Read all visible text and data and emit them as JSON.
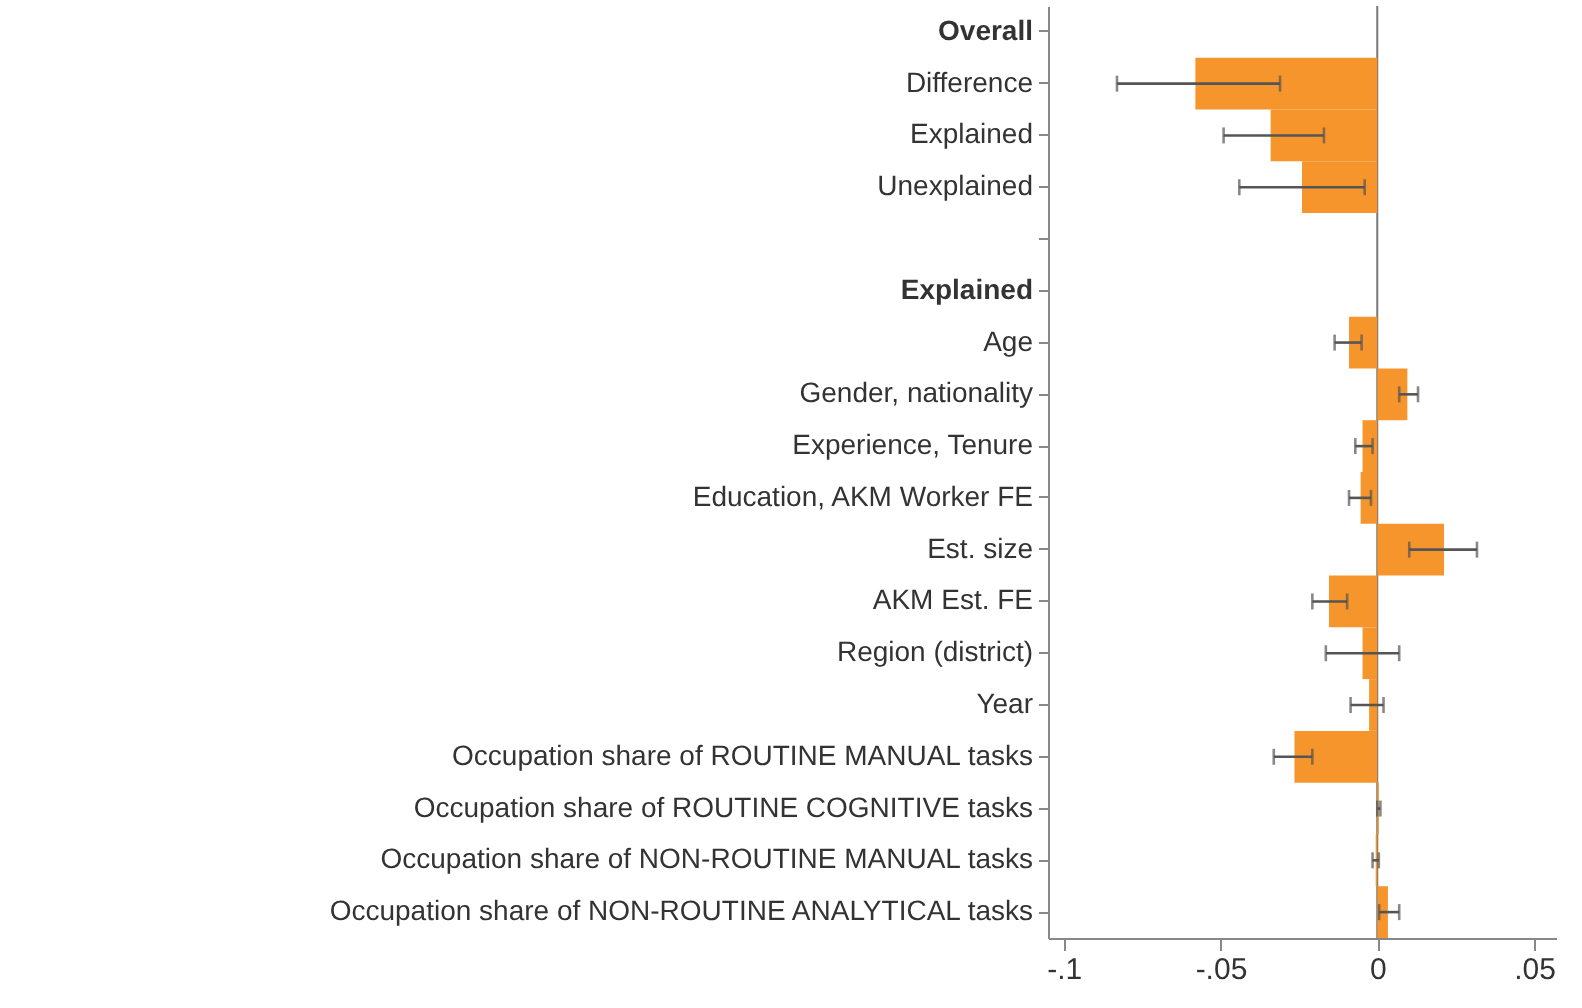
{
  "chart_data": {
    "type": "bar",
    "orientation": "horizontal",
    "categories": [
      "Overall",
      "Difference",
      "Explained",
      "Unexplained",
      null,
      "Explained",
      "Age",
      "Gender, nationality",
      "Experience, Tenure",
      "Education, AKM Worker FE",
      "Est. size",
      "AKM Est. FE",
      "Region (district)",
      "Year",
      "Occupation share of ROUTINE MANUAL tasks",
      "Occupation share of ROUTINE COGNITIVE tasks",
      "Occupation share of NON-ROUTINE MANUAL tasks",
      "Occupation share of NON-ROUTINE ANALYTICAL tasks"
    ],
    "values": [
      null,
      -0.058,
      -0.034,
      -0.024,
      null,
      null,
      -0.009,
      0.0096,
      -0.0047,
      -0.0053,
      0.0213,
      -0.0154,
      -0.0047,
      -0.0026,
      -0.0264,
      0.0005,
      -0.0005,
      0.0034
    ],
    "errors": [
      null,
      [
        -0.083,
        -0.031
      ],
      [
        -0.049,
        -0.017
      ],
      [
        -0.044,
        -0.004
      ],
      null,
      null,
      [
        -0.0136,
        -0.005
      ],
      [
        0.007,
        0.013
      ],
      [
        -0.007,
        -0.0015
      ],
      [
        -0.009,
        -0.002
      ],
      [
        0.0102,
        0.0318
      ],
      [
        -0.0207,
        -0.0096
      ],
      [
        -0.0164,
        0.007
      ],
      [
        -0.0085,
        0.002
      ],
      [
        -0.033,
        -0.0207
      ],
      [
        0,
        0.001
      ],
      [
        -0.0015,
        0.0005
      ],
      [
        0.0006,
        0.007
      ]
    ],
    "color": "#f7952d",
    "xlim": [
      -0.105,
      0.057
    ],
    "xticks": [
      {
        "value": -0.1,
        "label": "-.1"
      },
      {
        "value": -0.05,
        "label": "-.05"
      },
      0,
      {
        "value": 0.05,
        "label": ".05"
      }
    ],
    "ref_lines": [
      {
        "axis": "x",
        "value": 0,
        "color": "#777777"
      }
    ],
    "grid": false
  }
}
